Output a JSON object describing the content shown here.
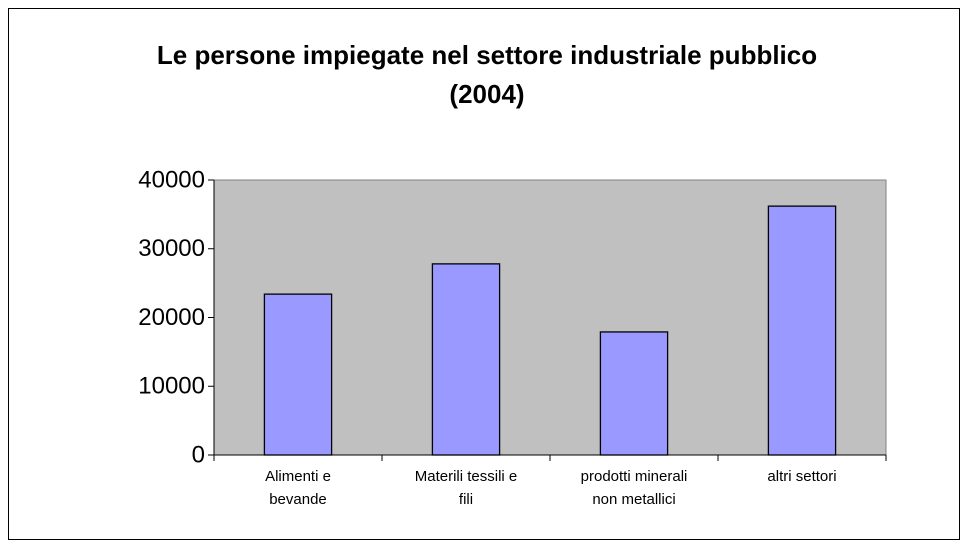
{
  "chart_data": {
    "type": "bar",
    "title": "Le persone impiegate nel settore industriale pubblico (2004)",
    "categories": [
      "Alimenti e\nbevande",
      "Materili tessili e\nfili",
      "prodotti minerali\nnon metallici",
      "altri settori"
    ],
    "values": [
      23400,
      27800,
      17900,
      36200
    ],
    "color": "#9999ff",
    "ylim": [
      0,
      40000
    ],
    "yticks": [
      0,
      10000,
      20000,
      30000,
      40000
    ],
    "grid": false
  }
}
